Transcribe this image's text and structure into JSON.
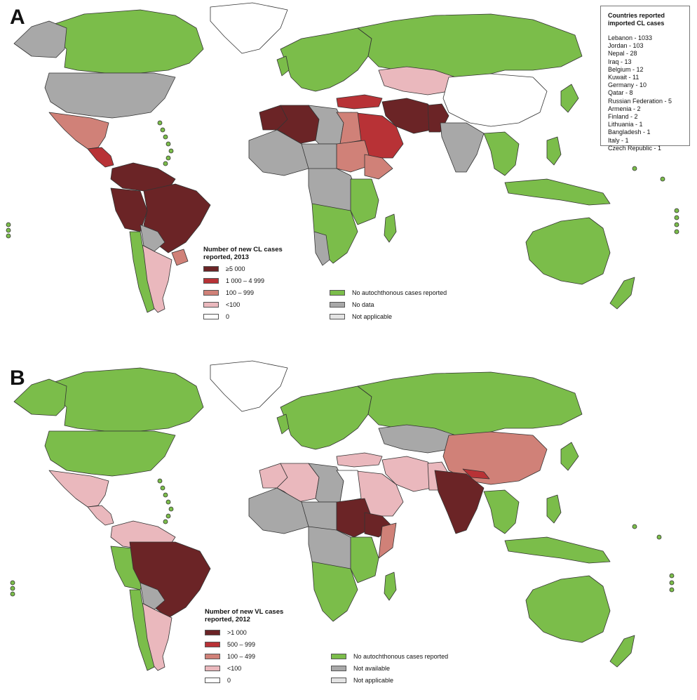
{
  "panel_a": {
    "letter": "A",
    "legend_title_line1": "Number of new CL cases",
    "legend_title_line2": "reported, 2013",
    "legend_items": [
      {
        "label": "≥5 000",
        "color": "#6b2426"
      },
      {
        "label": "1 000 – 4 999",
        "color": "#b83236"
      },
      {
        "label": "100 – 999",
        "color": "#d08178"
      },
      {
        "label": "<100",
        "color": "#eab8bd"
      },
      {
        "label": "0",
        "color": "#ffffff"
      }
    ],
    "legend_items_right": [
      {
        "label": "No autochthonous cases reported",
        "color": "#7bbd4a"
      },
      {
        "label": "No data",
        "color": "#a8a8a8"
      },
      {
        "label": "Not applicable",
        "color": "#e3e3e3"
      }
    ],
    "inset": {
      "title_line1": "Countries reported",
      "title_line2": "imported CL cases",
      "items": [
        "Lebanon - 1033",
        "Jordan - 103",
        "Nepal - 28",
        "Iraq - 13",
        "Belgium - 12",
        "Kuwait - 11",
        "Germany - 10",
        "Qatar - 8",
        "Russian Federation - 5",
        "Armenia - 2",
        "Finland - 2",
        "Lithuania - 1",
        "Bangladesh - 1",
        "Italy - 1",
        "Czech Republic - 1"
      ]
    }
  },
  "panel_b": {
    "letter": "B",
    "legend_title_line1": "Number of new VL cases",
    "legend_title_line2": "reported, 2012",
    "legend_items": [
      {
        "label": ">1 000",
        "color": "#6b2426"
      },
      {
        "label": "500 – 999",
        "color": "#b83236"
      },
      {
        "label": "100 – 499",
        "color": "#d08178"
      },
      {
        "label": "<100",
        "color": "#eab8bd"
      },
      {
        "label": "0",
        "color": "#ffffff"
      }
    ],
    "legend_items_right": [
      {
        "label": "No autochthonous cases reported",
        "color": "#7bbd4a"
      },
      {
        "label": "Not available",
        "color": "#a8a8a8"
      },
      {
        "label": "Not applicable",
        "color": "#e3e3e3"
      }
    ]
  },
  "colors": {
    "green": "#7bbd4a",
    "grey": "#a8a8a8",
    "dark": "#6b2426",
    "red": "#b83236",
    "salmon": "#d08178",
    "pink": "#eab8bd",
    "white": "#ffffff",
    "light": "#e3e3e3",
    "border": "#333333"
  }
}
